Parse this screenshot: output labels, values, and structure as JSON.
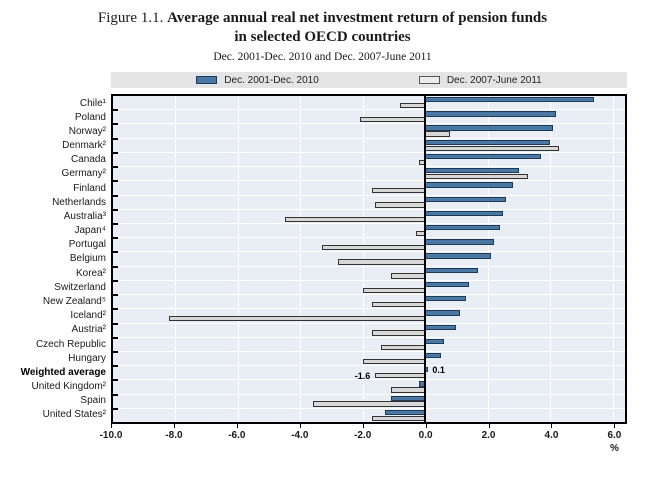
{
  "figure": {
    "label": "Figure 1.1.",
    "title_line1": "Average annual real net investment return of pension funds",
    "title_line2": "in selected OECD countries",
    "subtitle": "Dec. 2001-Dec. 2010 and Dec. 2007-June 2011"
  },
  "chart_data": {
    "type": "bar",
    "orientation": "horizontal",
    "title": "Average annual real net investment return of pension funds in selected OECD countries",
    "subtitle": "Dec. 2001-Dec. 2010 and Dec. 2007-June 2011",
    "categories": [
      "Chile¹",
      "Poland",
      "Norway²",
      "Denmark²",
      "Canada",
      "Germany²",
      "Finland",
      "Netherlands",
      "Australia³",
      "Japan⁴",
      "Portugal",
      "Belgium",
      "Korea²",
      "Switzerland",
      "New Zealand⁵",
      "Iceland²",
      "Austria²",
      "Czech Republic",
      "Hungary",
      "Weighted average",
      "United Kingdom²",
      "Spain",
      "United States²"
    ],
    "series": [
      {
        "name": "Dec. 2001-Dec. 2010",
        "color": "#4b77a3",
        "border_color": "#1c3a57",
        "values": [
          5.4,
          4.2,
          4.1,
          4.0,
          3.7,
          3.0,
          2.8,
          2.6,
          2.5,
          2.4,
          2.2,
          2.1,
          1.7,
          1.4,
          1.3,
          1.1,
          1.0,
          0.6,
          0.5,
          0.1,
          -0.2,
          -1.1,
          -1.3
        ]
      },
      {
        "name": "Dec. 2007-June 2011",
        "color": "#d7d7d7",
        "border_color": "#333333",
        "values": [
          -0.8,
          -2.1,
          0.8,
          4.3,
          -0.2,
          3.3,
          -1.7,
          -1.6,
          -4.5,
          -0.3,
          -3.3,
          -2.8,
          -1.1,
          -2.0,
          -1.7,
          -8.2,
          -1.7,
          -1.4,
          -2.0,
          -1.6,
          -1.1,
          -3.6,
          -1.7
        ]
      }
    ],
    "bold_category": "Weighted average",
    "annotations": [
      {
        "category": "Weighted average",
        "series": 0,
        "text": "0.1"
      },
      {
        "category": "Weighted average",
        "series": 1,
        "text": "-1.6"
      }
    ],
    "xlim": [
      -10,
      6.4
    ],
    "xticks": [
      -10,
      -8,
      -6,
      -4,
      -2,
      0,
      2,
      4,
      6
    ],
    "xtick_labels": [
      "-10.0",
      "-8.0",
      "-6.0",
      "-4.0",
      "-2.0",
      "0.0",
      "2.0",
      "4.0",
      "6.0"
    ],
    "x_unit": "%",
    "grid": true,
    "gridline_color": "#ffffff",
    "plot_background": "#e9edf4",
    "legend_position": "top",
    "legend_background": "#e4e4e4"
  }
}
